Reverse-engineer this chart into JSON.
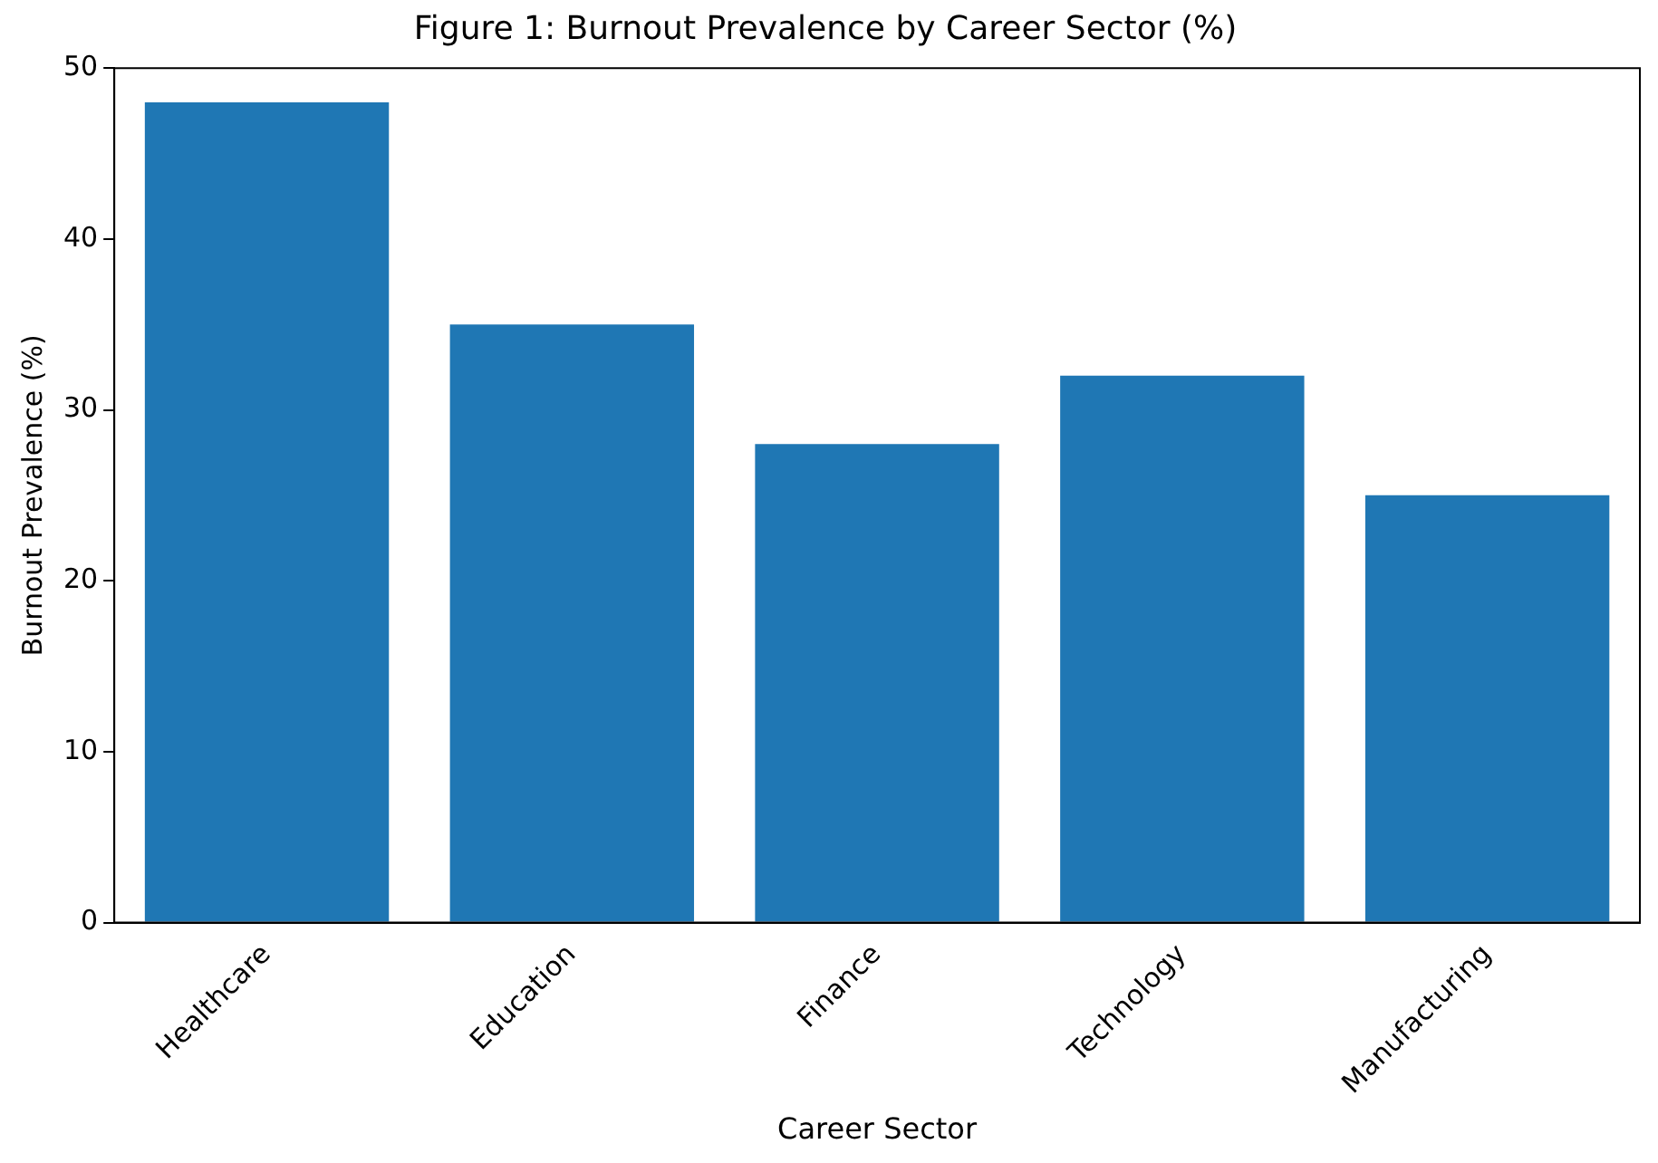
{
  "chart_data": {
    "type": "bar",
    "title": "Figure 1: Burnout Prevalence by Career Sector (%)",
    "xlabel": "Career Sector",
    "ylabel": "Burnout Prevalence (%)",
    "categories": [
      "Healthcare",
      "Education",
      "Finance",
      "Technology",
      "Manufacturing"
    ],
    "values": [
      48,
      35,
      28,
      32,
      25
    ],
    "color": "#1f77b4",
    "ylim": [
      0,
      50
    ],
    "yticks": [
      0,
      10,
      20,
      30,
      40,
      50
    ],
    "grid": false,
    "legend": false
  }
}
